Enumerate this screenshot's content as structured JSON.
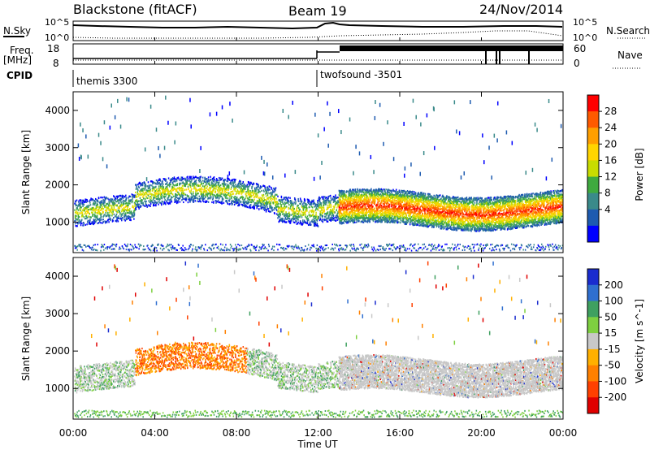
{
  "header": {
    "station": "Blackstone (fitACF)",
    "beam": "Beam 19",
    "date": "24/Nov/2014"
  },
  "top_panels": {
    "nsky_label": "N.Sky",
    "nsky_ticks": [
      "10^5",
      "10^0"
    ],
    "nsearch_label": "N.Search",
    "nsearch_ticks": [
      "10^5",
      "10^0"
    ],
    "freq_label_1": "Freq.",
    "freq_label_2": "[MHz]",
    "freq_ticks": [
      "18",
      "8"
    ],
    "nave_label": "Nave",
    "nave_ticks": [
      "60",
      "0"
    ],
    "cpid_label": "CPID",
    "cpid_programs": [
      {
        "name": "themis 3300",
        "start_hour": 0
      },
      {
        "name": "twofsound -3501",
        "start_hour": 12
      }
    ]
  },
  "chart_data": [
    {
      "type": "heatmap",
      "title": "",
      "parameter": "Power",
      "xlabel": "Time UT",
      "ylabel": "Slant Range [km]",
      "xlim": [
        0,
        24
      ],
      "ylim": [
        180,
        4500
      ],
      "x_ticks": [
        "00:00",
        "04:00",
        "08:00",
        "12:00",
        "16:00",
        "20:00",
        "00:00"
      ],
      "y_ticks": [
        1000,
        2000,
        3000,
        4000
      ],
      "colorbar": {
        "label": "Power [dB]",
        "ticks": [
          "28",
          "24",
          "20",
          "16",
          "12",
          "8",
          "4"
        ],
        "colors": [
          "#ff0000",
          "#ff5a00",
          "#ff9f00",
          "#ffd500",
          "#c8dc00",
          "#3faa3f",
          "#3a8a8a",
          "#1e5bb0",
          "#0000ff"
        ]
      }
    },
    {
      "type": "heatmap",
      "title": "",
      "parameter": "Velocity",
      "xlabel": "Time UT",
      "ylabel": "Slant Range [km]",
      "xlim": [
        0,
        24
      ],
      "ylim": [
        180,
        4500
      ],
      "x_ticks": [
        "00:00",
        "04:00",
        "08:00",
        "12:00",
        "16:00",
        "20:00",
        "00:00"
      ],
      "y_ticks": [
        1000,
        2000,
        3000,
        4000
      ],
      "colorbar": {
        "label": "Velocity [m s^-1]",
        "ticks": [
          "200",
          "100",
          "50",
          "15",
          "-15",
          "-50",
          "-100",
          "-200"
        ],
        "colors": [
          "#1a2ccf",
          "#2f6fd0",
          "#3fa060",
          "#7ed040",
          "#c8c8c8",
          "#ffb000",
          "#ff8000",
          "#ff4000",
          "#e00000"
        ]
      }
    }
  ]
}
